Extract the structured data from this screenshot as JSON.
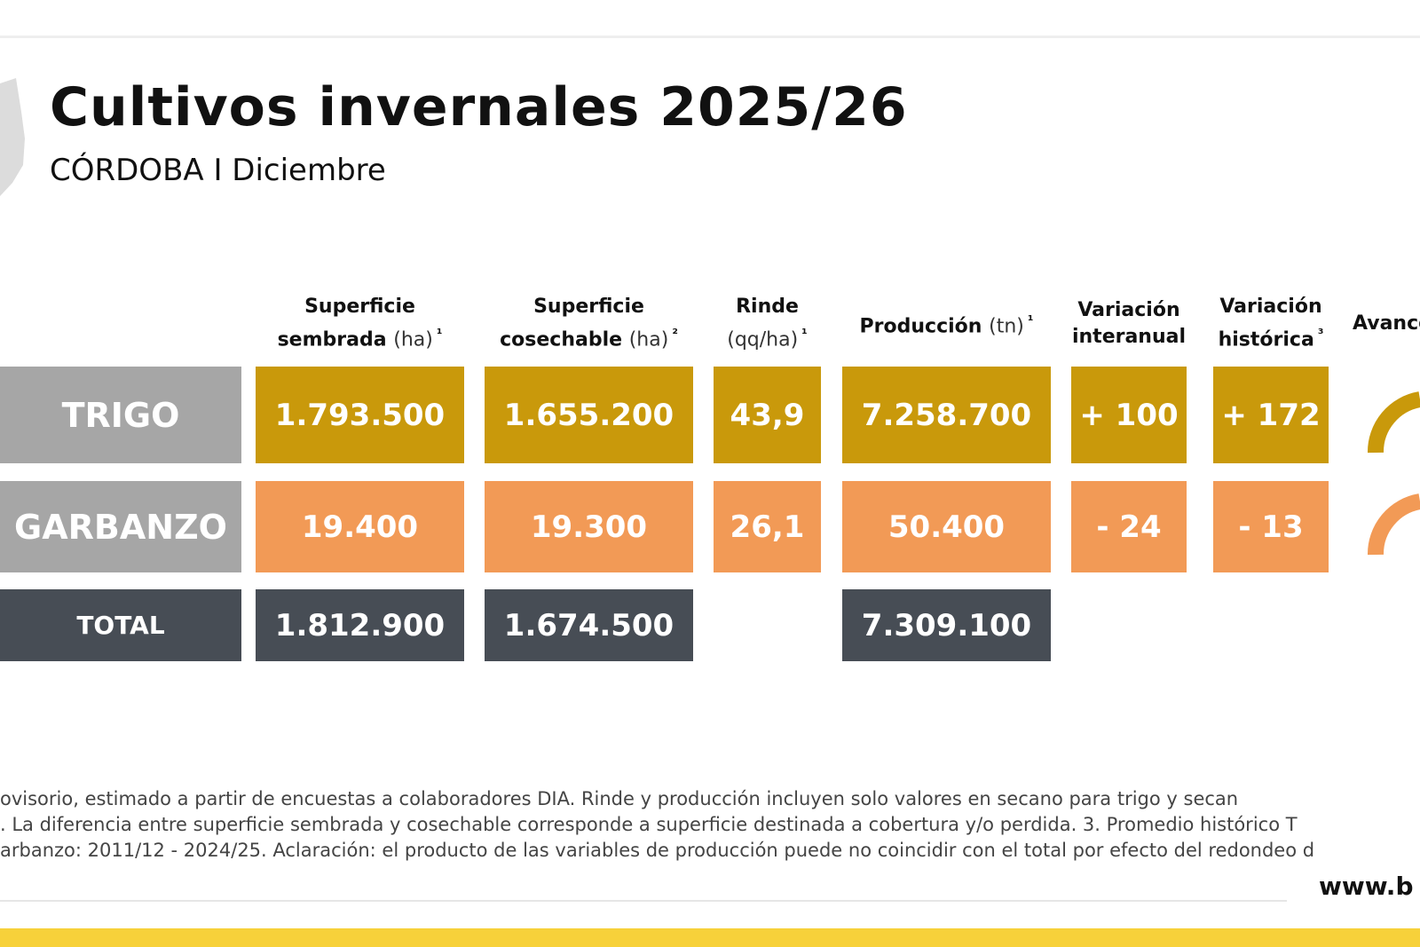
{
  "header": {
    "title": "Cultivos invernales 2025/26",
    "subtitle": "CÓRDOBA I Diciembre"
  },
  "table": {
    "columns": [
      {
        "name": "Superficie sembrada",
        "unit": "(ha)",
        "note": "¹"
      },
      {
        "name": "Superficie cosechable",
        "unit": "(ha)",
        "note": "²"
      },
      {
        "name": "Rinde",
        "unit": "(qq/ha)",
        "note": "¹"
      },
      {
        "name": "Producción",
        "unit": "(tn)",
        "note": "¹"
      },
      {
        "name": "Variación interanual"
      },
      {
        "name": "Variación histórica",
        "note": "³"
      },
      {
        "name": "Avance"
      }
    ],
    "rows": [
      {
        "label": "TRIGO",
        "cells": [
          "1.793.500",
          "1.655.200",
          "43,9",
          "7.258.700",
          "+ 100",
          "+ 172"
        ]
      },
      {
        "label": "GARBANZO",
        "cells": [
          "19.400",
          "19.300",
          "26,1",
          "50.400",
          "- 24",
          "- 13"
        ]
      },
      {
        "label": "TOTAL",
        "cells": [
          "1.812.900",
          "1.674.500",
          null,
          "7.309.100",
          null,
          null
        ]
      }
    ]
  },
  "footnotes": [
    "ovisorio, estimado a partir de encuestas a colaboradores DIA. Rinde y producción incluyen solo valores en secano para trigo y secan",
    ". La diferencia entre superficie sembrada y cosechable corresponde a superficie destinada a cobertura y/o perdida. 3. Promedio histórico T",
    "arbanzo: 2011/12 - 2024/25. Aclaración: el producto de las variables de producción puede no coincidir con el total por efecto del redondeo d"
  ],
  "website": "www.b"
}
